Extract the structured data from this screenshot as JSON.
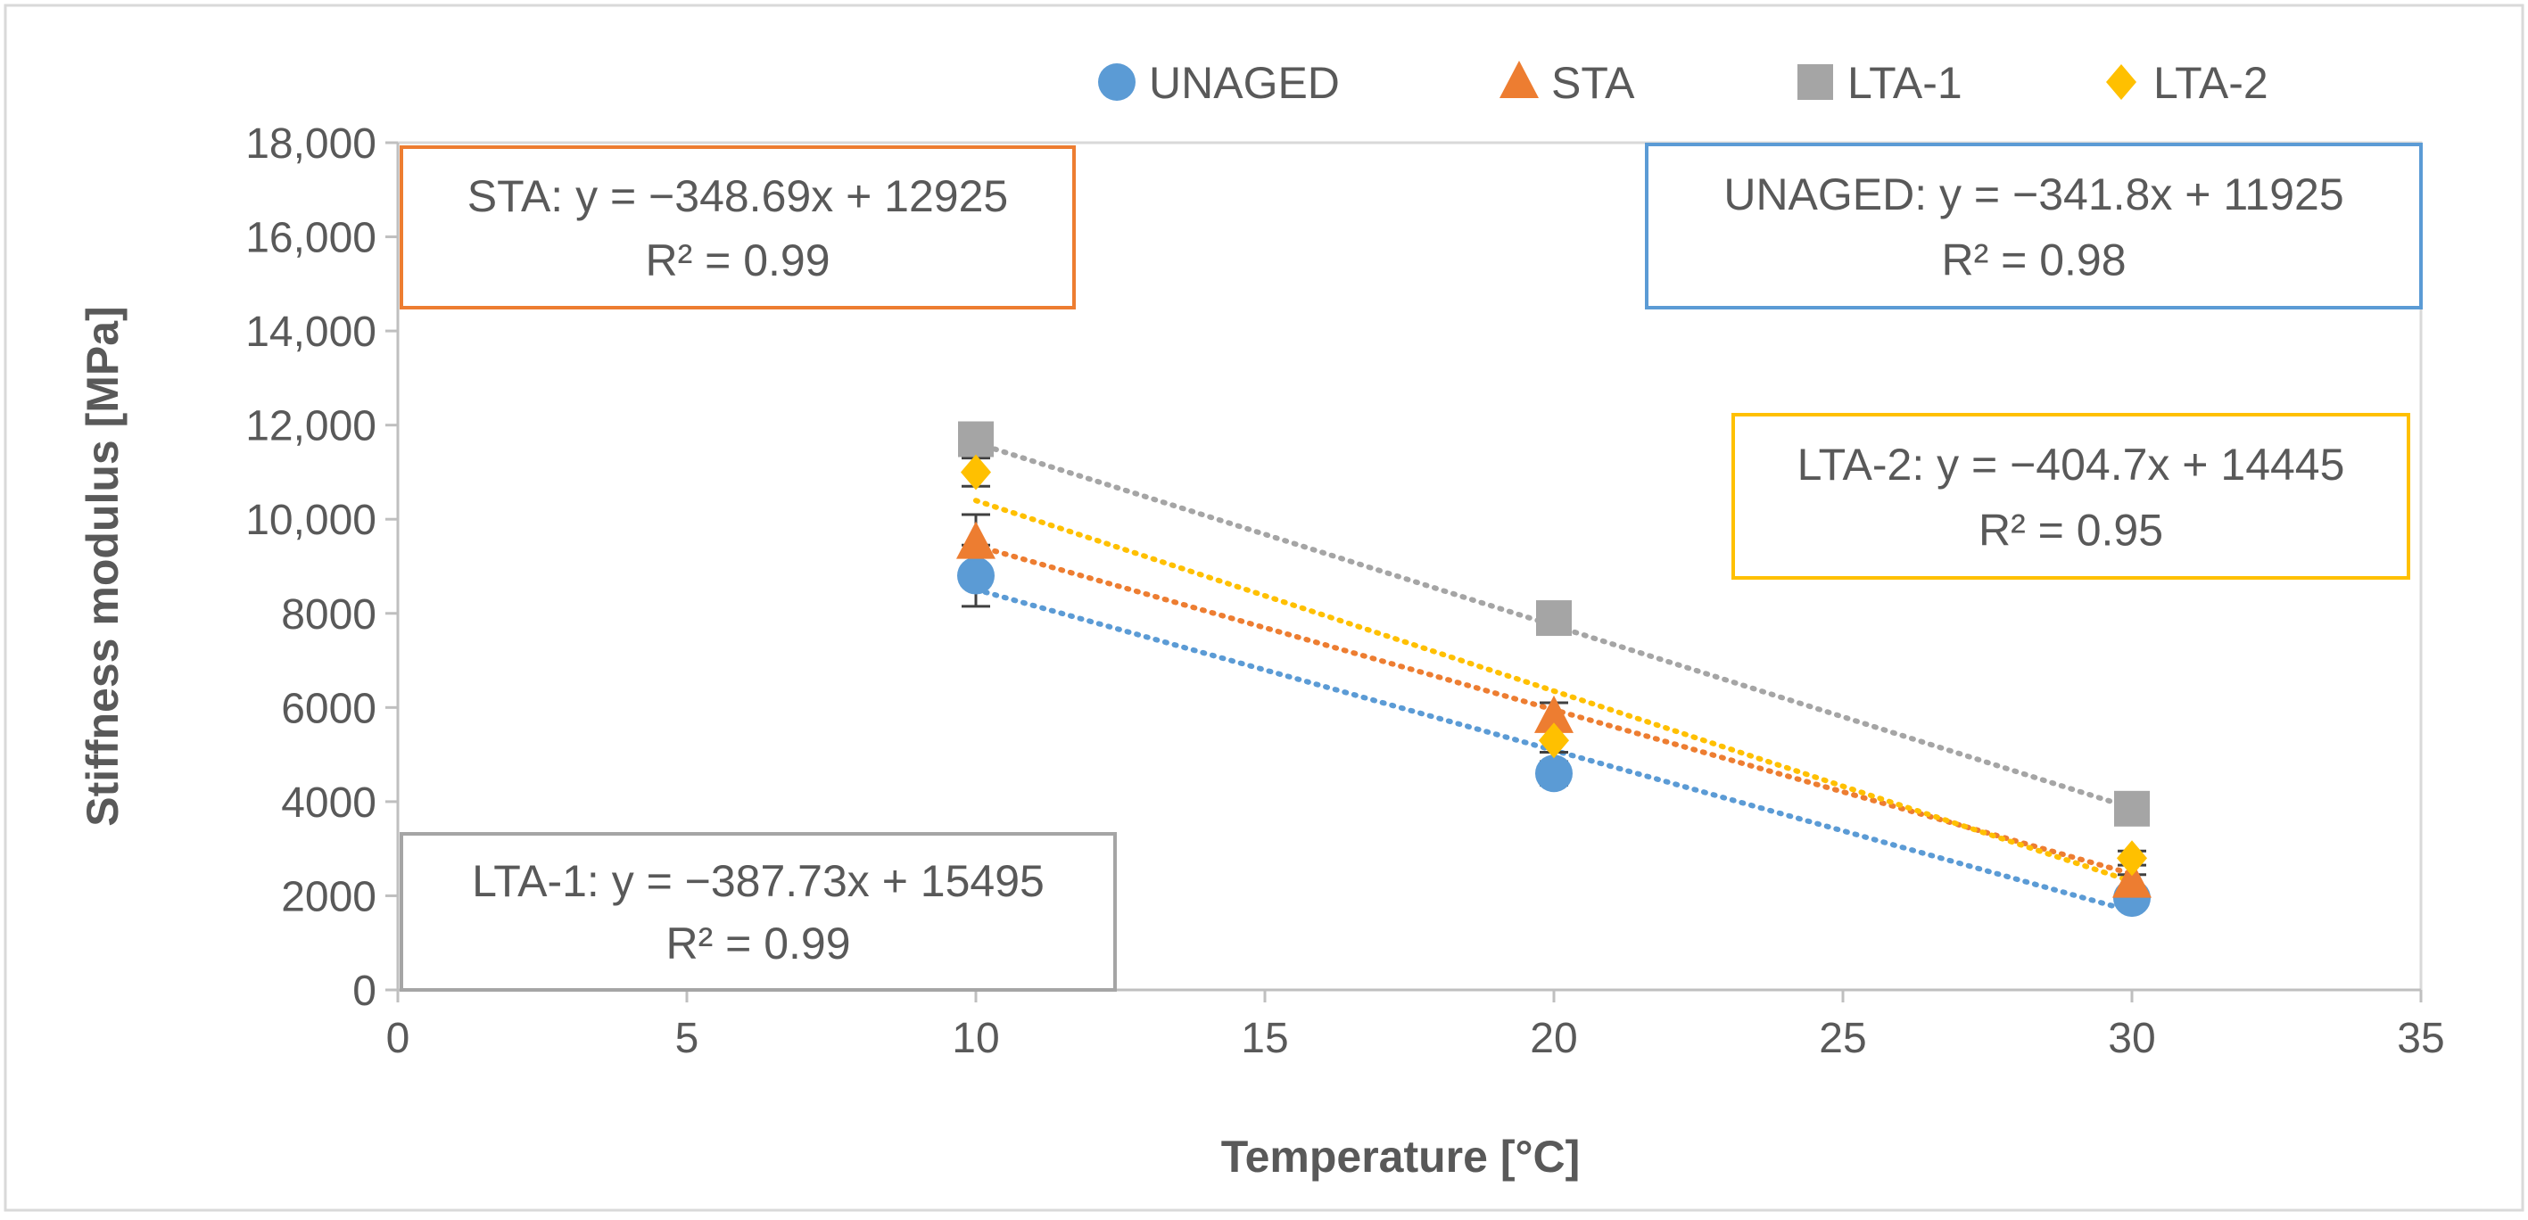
{
  "chart_data": {
    "type": "scatter",
    "xlabel": "Temperature [°C]",
    "ylabel": "Stiffness modulus [MPa]",
    "xlim": [
      0,
      35
    ],
    "ylim": [
      0,
      18000
    ],
    "xticks": [
      0,
      5,
      10,
      15,
      20,
      25,
      30,
      35
    ],
    "xtick_labels": [
      "0",
      "5",
      "10",
      "15",
      "20",
      "25",
      "30",
      "35"
    ],
    "yticks": [
      0,
      2000,
      4000,
      6000,
      8000,
      10000,
      12000,
      14000,
      16000,
      18000
    ],
    "ytick_labels": [
      "0",
      "2000",
      "4000",
      "6000",
      "8000",
      "10,000",
      "12,000",
      "14,000",
      "16,000",
      "18,000"
    ],
    "grid": false,
    "legend_position": "top",
    "series": [
      {
        "name": "UNAGED",
        "marker": "circle",
        "color": "#5b9bd5",
        "x": [
          10,
          20,
          30
        ],
        "y": [
          8800,
          4600,
          1950
        ],
        "error": [
          650,
          250,
          150
        ],
        "trendline": {
          "slope": -341.8,
          "intercept": 11925,
          "label": "UNAGED: y = −341.8x + 11925",
          "r2_label": "R² = 0.98"
        }
      },
      {
        "name": "STA",
        "marker": "triangle",
        "color": "#ed7d31",
        "x": [
          10,
          20,
          30
        ],
        "y": [
          9500,
          5800,
          2300
        ],
        "error": [
          600,
          300,
          150
        ],
        "trendline": {
          "slope": -348.69,
          "intercept": 12925,
          "label": "STA: y = −348.69x + 12925",
          "r2_label": "R² = 0.99"
        }
      },
      {
        "name": "LTA-1",
        "marker": "square",
        "color": "#a5a5a5",
        "x": [
          10,
          20,
          30
        ],
        "y": [
          11700,
          7900,
          3850
        ],
        "error": [
          300,
          200,
          150
        ],
        "trendline": {
          "slope": -387.73,
          "intercept": 15495,
          "label": "LTA-1: y = −387.73x + 15495",
          "r2_label": "R² = 0.99"
        }
      },
      {
        "name": "LTA-2",
        "marker": "diamond",
        "color": "#ffc000",
        "x": [
          10,
          20,
          30
        ],
        "y": [
          11000,
          5300,
          2800
        ],
        "error": [
          300,
          250,
          150
        ],
        "trendline": {
          "slope": -404.7,
          "intercept": 14445,
          "label": "LTA-2: y = −404.7x + 14445",
          "r2_label": "R² = 0.95"
        }
      }
    ]
  }
}
